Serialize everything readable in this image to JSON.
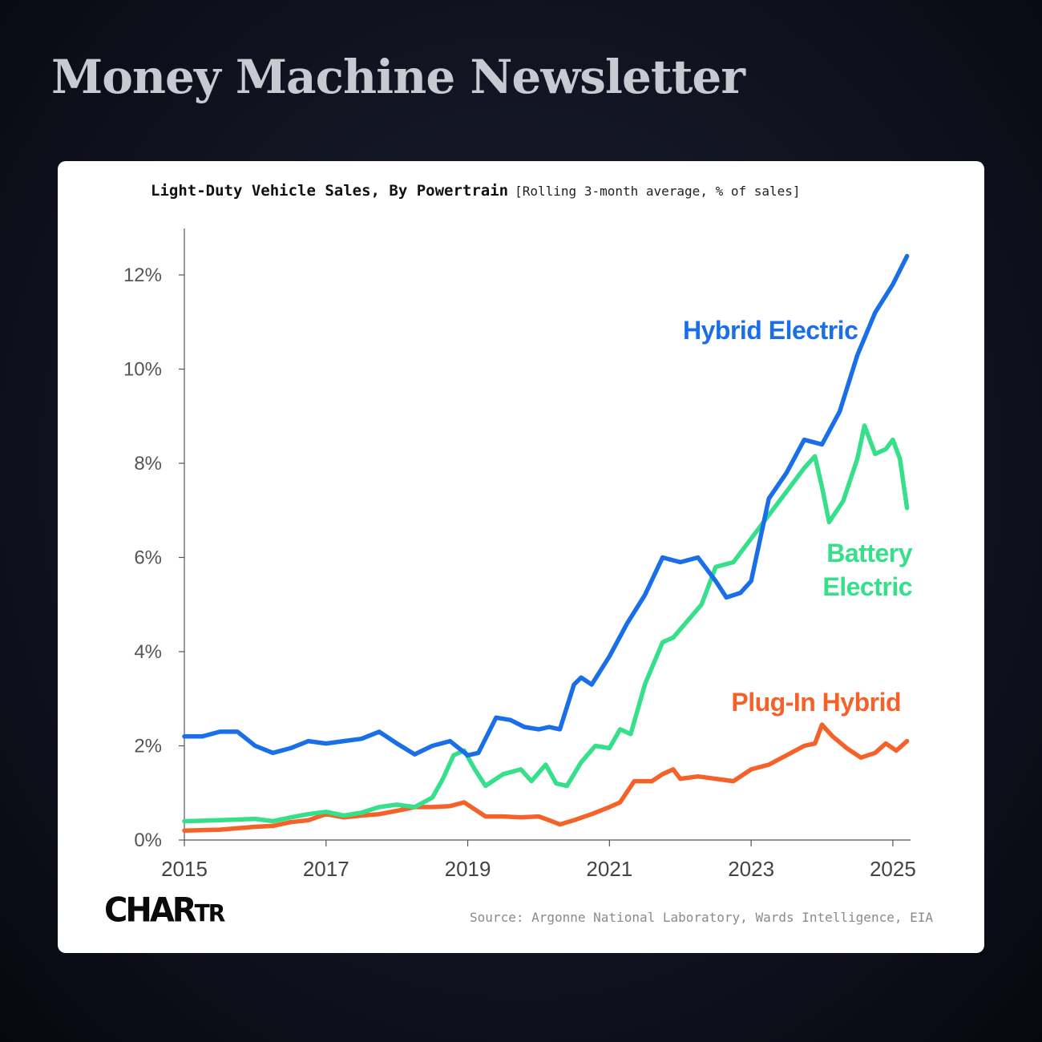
{
  "header": {
    "title": "Money Machine Newsletter"
  },
  "card": {
    "logo_main": "CHAR",
    "logo_small": "TR",
    "source": "Source: Argonne National Laboratory, Wards Intelligence, EIA"
  },
  "chart_data": {
    "type": "line",
    "title": "Light-Duty Vehicle Sales, By Powertrain",
    "subtitle": "[Rolling 3-month average, % of sales]",
    "xlabel": "",
    "ylabel": "",
    "xlim": [
      2015,
      2025.25
    ],
    "ylim": [
      0,
      12.5
    ],
    "x_ticks": [
      2015,
      2017,
      2019,
      2021,
      2023,
      2025
    ],
    "x_tick_labels": [
      "2015",
      "2017",
      "2019",
      "2021",
      "2023",
      "2025"
    ],
    "y_ticks": [
      0,
      2,
      4,
      6,
      8,
      10,
      12
    ],
    "y_tick_labels": [
      "0%",
      "2%",
      "4%",
      "6%",
      "8%",
      "10%",
      "12%"
    ],
    "grid": false,
    "series": [
      {
        "name": "Hybrid Electric",
        "color": "#1a6fe8",
        "points": [
          [
            2015.0,
            2.2
          ],
          [
            2015.25,
            2.2
          ],
          [
            2015.5,
            2.3
          ],
          [
            2015.75,
            2.3
          ],
          [
            2016.0,
            2.0
          ],
          [
            2016.25,
            1.85
          ],
          [
            2016.5,
            1.95
          ],
          [
            2016.75,
            2.1
          ],
          [
            2017.0,
            2.05
          ],
          [
            2017.25,
            2.1
          ],
          [
            2017.5,
            2.15
          ],
          [
            2017.75,
            2.3
          ],
          [
            2018.0,
            2.05
          ],
          [
            2018.25,
            1.82
          ],
          [
            2018.5,
            2.0
          ],
          [
            2018.75,
            2.1
          ],
          [
            2019.0,
            1.8
          ],
          [
            2019.15,
            1.85
          ],
          [
            2019.4,
            2.6
          ],
          [
            2019.6,
            2.55
          ],
          [
            2019.8,
            2.4
          ],
          [
            2020.0,
            2.35
          ],
          [
            2020.15,
            2.4
          ],
          [
            2020.3,
            2.35
          ],
          [
            2020.5,
            3.3
          ],
          [
            2020.6,
            3.45
          ],
          [
            2020.75,
            3.3
          ],
          [
            2021.0,
            3.9
          ],
          [
            2021.25,
            4.6
          ],
          [
            2021.5,
            5.2
          ],
          [
            2021.75,
            6.0
          ],
          [
            2022.0,
            5.9
          ],
          [
            2022.25,
            6.0
          ],
          [
            2022.5,
            5.5
          ],
          [
            2022.65,
            5.15
          ],
          [
            2022.85,
            5.25
          ],
          [
            2023.0,
            5.5
          ],
          [
            2023.25,
            7.25
          ],
          [
            2023.5,
            7.8
          ],
          [
            2023.75,
            8.5
          ],
          [
            2024.0,
            8.4
          ],
          [
            2024.25,
            9.1
          ],
          [
            2024.5,
            10.3
          ],
          [
            2024.75,
            11.2
          ],
          [
            2025.0,
            11.8
          ],
          [
            2025.2,
            12.4
          ]
        ]
      },
      {
        "name": "Battery Electric",
        "color": "#36df8a",
        "points": [
          [
            2015.0,
            0.4
          ],
          [
            2015.5,
            0.42
          ],
          [
            2016.0,
            0.45
          ],
          [
            2016.25,
            0.4
          ],
          [
            2016.5,
            0.48
          ],
          [
            2016.75,
            0.55
          ],
          [
            2017.0,
            0.6
          ],
          [
            2017.25,
            0.52
          ],
          [
            2017.5,
            0.58
          ],
          [
            2017.75,
            0.7
          ],
          [
            2018.0,
            0.75
          ],
          [
            2018.25,
            0.7
          ],
          [
            2018.5,
            0.9
          ],
          [
            2018.65,
            1.3
          ],
          [
            2018.8,
            1.8
          ],
          [
            2018.95,
            1.9
          ],
          [
            2019.1,
            1.5
          ],
          [
            2019.25,
            1.15
          ],
          [
            2019.5,
            1.4
          ],
          [
            2019.75,
            1.5
          ],
          [
            2019.9,
            1.25
          ],
          [
            2020.1,
            1.6
          ],
          [
            2020.25,
            1.2
          ],
          [
            2020.4,
            1.15
          ],
          [
            2020.6,
            1.65
          ],
          [
            2020.8,
            2.0
          ],
          [
            2021.0,
            1.95
          ],
          [
            2021.15,
            2.35
          ],
          [
            2021.3,
            2.25
          ],
          [
            2021.5,
            3.3
          ],
          [
            2021.75,
            4.2
          ],
          [
            2021.9,
            4.3
          ],
          [
            2022.1,
            4.65
          ],
          [
            2022.3,
            5.0
          ],
          [
            2022.5,
            5.8
          ],
          [
            2022.75,
            5.9
          ],
          [
            2023.0,
            6.4
          ],
          [
            2023.25,
            6.9
          ],
          [
            2023.5,
            7.4
          ],
          [
            2023.75,
            7.9
          ],
          [
            2023.9,
            8.15
          ],
          [
            2024.0,
            7.5
          ],
          [
            2024.1,
            6.75
          ],
          [
            2024.3,
            7.2
          ],
          [
            2024.5,
            8.1
          ],
          [
            2024.6,
            8.8
          ],
          [
            2024.75,
            8.2
          ],
          [
            2024.9,
            8.3
          ],
          [
            2025.0,
            8.5
          ],
          [
            2025.1,
            8.1
          ],
          [
            2025.2,
            7.05
          ]
        ]
      },
      {
        "name": "Plug-In Hybrid",
        "color": "#f4622a",
        "points": [
          [
            2015.0,
            0.2
          ],
          [
            2015.5,
            0.22
          ],
          [
            2016.0,
            0.28
          ],
          [
            2016.25,
            0.3
          ],
          [
            2016.5,
            0.38
          ],
          [
            2016.75,
            0.42
          ],
          [
            2017.0,
            0.55
          ],
          [
            2017.25,
            0.48
          ],
          [
            2017.5,
            0.52
          ],
          [
            2017.75,
            0.55
          ],
          [
            2018.0,
            0.62
          ],
          [
            2018.25,
            0.7
          ],
          [
            2018.5,
            0.7
          ],
          [
            2018.75,
            0.72
          ],
          [
            2018.95,
            0.8
          ],
          [
            2019.1,
            0.65
          ],
          [
            2019.25,
            0.5
          ],
          [
            2019.5,
            0.5
          ],
          [
            2019.75,
            0.48
          ],
          [
            2020.0,
            0.5
          ],
          [
            2020.15,
            0.42
          ],
          [
            2020.3,
            0.33
          ],
          [
            2020.5,
            0.42
          ],
          [
            2020.75,
            0.55
          ],
          [
            2021.0,
            0.7
          ],
          [
            2021.15,
            0.8
          ],
          [
            2021.35,
            1.25
          ],
          [
            2021.6,
            1.25
          ],
          [
            2021.75,
            1.4
          ],
          [
            2021.9,
            1.5
          ],
          [
            2022.0,
            1.3
          ],
          [
            2022.25,
            1.35
          ],
          [
            2022.5,
            1.3
          ],
          [
            2022.75,
            1.25
          ],
          [
            2023.0,
            1.5
          ],
          [
            2023.25,
            1.6
          ],
          [
            2023.5,
            1.8
          ],
          [
            2023.75,
            2.0
          ],
          [
            2023.9,
            2.05
          ],
          [
            2024.0,
            2.45
          ],
          [
            2024.15,
            2.2
          ],
          [
            2024.35,
            1.95
          ],
          [
            2024.55,
            1.75
          ],
          [
            2024.75,
            1.85
          ],
          [
            2024.9,
            2.05
          ],
          [
            2025.05,
            1.9
          ],
          [
            2025.2,
            2.1
          ]
        ]
      }
    ],
    "annotations": [
      {
        "series": "Hybrid Electric",
        "lines": [
          "Hybrid Electric"
        ]
      },
      {
        "series": "Battery Electric",
        "lines": [
          "Battery",
          "Electric"
        ]
      },
      {
        "series": "Plug-In Hybrid",
        "lines": [
          "Plug-In Hybrid"
        ]
      }
    ]
  }
}
